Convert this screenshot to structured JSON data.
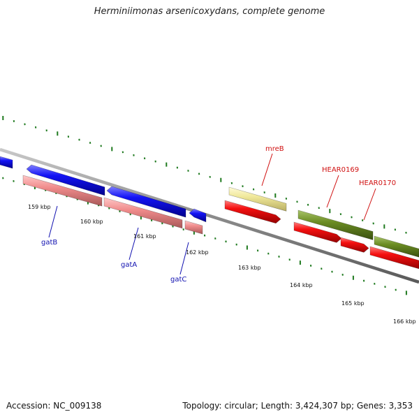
{
  "title": "Herminiimonas arsenicoxydans, complete genome",
  "footer": {
    "accession": "Accession: NC_009138",
    "summary": "Topology: circular; Length: 3,424,307 bp; Genes: 3,353"
  },
  "colors": {
    "backbone": "#8c8c8c",
    "tick": "#1f7a1f",
    "gene_blue": "#1010f0",
    "gene_pink": "#f08c8c",
    "gene_red": "#f01010",
    "gene_khaki": "#f0e89a",
    "gene_olive": "#6b8c23",
    "label_blue": "#1010b0",
    "label_red": "#d01010"
  },
  "scale_labels": [
    "159 kbp",
    "160 kbp",
    "161 kbp",
    "162 kbp",
    "163 kbp",
    "164 kbp",
    "165 kbp",
    "166 kbp"
  ],
  "gene_labels": [
    {
      "name": "gatB",
      "color": "blue"
    },
    {
      "name": "gatA",
      "color": "blue"
    },
    {
      "name": "gatC",
      "color": "blue"
    },
    {
      "name": "mreB",
      "color": "red"
    },
    {
      "name": "HEAR0169",
      "color": "red"
    },
    {
      "name": "HEAR0170",
      "color": "red"
    }
  ]
}
